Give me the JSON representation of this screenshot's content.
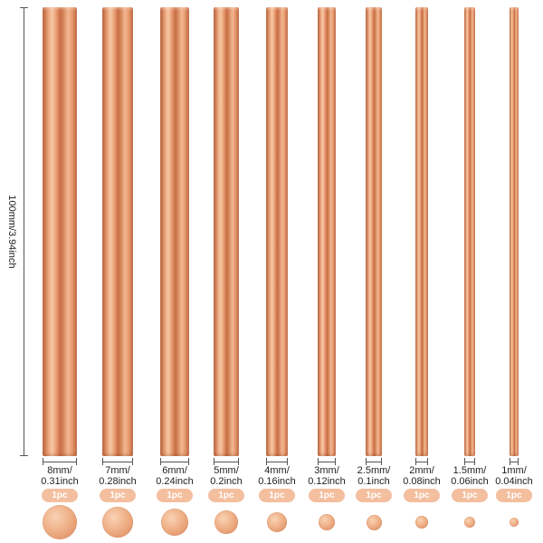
{
  "length_label": "100mm/3.94inch",
  "rods": [
    {
      "size_mm": "8mm/",
      "size_inch": "0.31inch",
      "qty": "1pc"
    },
    {
      "size_mm": "7mm/",
      "size_inch": "0.28inch",
      "qty": "1pc"
    },
    {
      "size_mm": "6mm/",
      "size_inch": "0.24inch",
      "qty": "1pc"
    },
    {
      "size_mm": "5mm/",
      "size_inch": "0.2inch",
      "qty": "1pc"
    },
    {
      "size_mm": "4mm/",
      "size_inch": "0.16inch",
      "qty": "1pc"
    },
    {
      "size_mm": "3mm/",
      "size_inch": "0.12inch",
      "qty": "1pc"
    },
    {
      "size_mm": "2.5mm/",
      "size_inch": "0.1inch",
      "qty": "1pc"
    },
    {
      "size_mm": "2mm/",
      "size_inch": "0.08inch",
      "qty": "1pc"
    },
    {
      "size_mm": "1.5mm/",
      "size_inch": "0.06inch",
      "qty": "1pc"
    },
    {
      "size_mm": "1mm/",
      "size_inch": "0.04inch",
      "qty": "1pc"
    }
  ],
  "colors": {
    "copper": "#d98a60",
    "badge": "#f4bf9f",
    "badge_text": "#ffffff",
    "dimension_line": "#555555"
  }
}
